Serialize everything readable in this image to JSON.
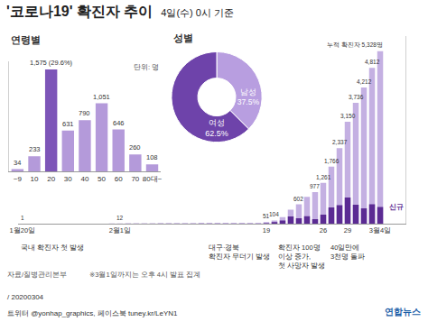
{
  "title": "'코로나19' 확진자 추이",
  "subtitle": "4일(수) 0시 기준",
  "source": "자료/질병관리본부",
  "note": "※3월1일까지는 오후 4시 발표 집계",
  "credits": [
    "/ 20200304",
    "트위터 @yonhap_graphics, 페이스북 tuney.kr/LeYN1",
    "연합뉴스"
  ],
  "chart_data": [
    {
      "type": "bar",
      "title": "연령별",
      "subtitle": "단위: 명",
      "categories": [
        "~9",
        "10",
        "20",
        "30",
        "40",
        "50",
        "60",
        "70",
        "80대~"
      ],
      "values": [
        34,
        233,
        1575,
        631,
        790,
        1051,
        646,
        260,
        108
      ],
      "value_labels": [
        "34",
        "233",
        "1,575 (29.6%)",
        "631",
        "790",
        "1,051",
        "646",
        "260",
        "108"
      ],
      "colors": [
        "#b49ada",
        "#b49ada",
        "#7d55b8",
        "#b49ada",
        "#b49ada",
        "#b49ada",
        "#b49ada",
        "#b49ada",
        "#b49ada"
      ],
      "ylim": [
        0,
        1700
      ],
      "tick_labels": "x",
      "grid": false,
      "data_labels": true
    },
    {
      "type": "pie",
      "title": "성별",
      "categories": [
        "남성",
        "여성"
      ],
      "values": [
        37.5,
        62.5
      ],
      "value_labels": [
        "37.5%",
        "62.5%"
      ],
      "colors": [
        "#b89ee0",
        "#6e43aa"
      ],
      "data_labels": true
    },
    {
      "type": "bar",
      "categories": [
        "1월20일",
        null,
        null,
        null,
        null,
        null,
        null,
        null,
        null,
        null,
        null,
        null,
        "2월1일",
        null,
        null,
        null,
        null,
        null,
        null,
        null,
        null,
        null,
        null,
        null,
        null,
        null,
        null,
        null,
        null,
        null,
        "19",
        null,
        null,
        null,
        null,
        null,
        null,
        "26",
        null,
        null,
        "29",
        null,
        null,
        null,
        "3월4일"
      ],
      "series": [
        {
          "name": "누적 확진자",
          "color": "#c4b0e2",
          "data_labels": true,
          "values": [
            1,
            1,
            1,
            1,
            2,
            2,
            3,
            4,
            4,
            4,
            6,
            11,
            12,
            15,
            15,
            16,
            18,
            23,
            24,
            24,
            25,
            27,
            28,
            28,
            28,
            28,
            28,
            29,
            30,
            31,
            51,
            104,
            204,
            433,
            602,
            833,
            977,
            1261,
            1766,
            2337,
            3150,
            3736,
            4212,
            4812,
            5328
          ],
          "value_labels": [
            "1",
            null,
            null,
            null,
            null,
            null,
            null,
            null,
            null,
            null,
            null,
            null,
            "12",
            null,
            null,
            null,
            null,
            null,
            null,
            null,
            null,
            null,
            null,
            null,
            null,
            null,
            null,
            null,
            null,
            null,
            "51",
            "104",
            null,
            null,
            "602",
            null,
            "977",
            "1,261",
            "1,766",
            "2,337",
            "3,150",
            "3,736",
            "4,212",
            "4,812",
            "누적 확진자 5,328명"
          ]
        },
        {
          "name": "신규",
          "color": "#5b2b93",
          "values": [
            1,
            0,
            0,
            0,
            1,
            0,
            1,
            1,
            0,
            0,
            2,
            5,
            1,
            3,
            0,
            1,
            2,
            5,
            1,
            0,
            1,
            2,
            1,
            0,
            0,
            0,
            0,
            1,
            1,
            1,
            20,
            53,
            100,
            229,
            169,
            231,
            144,
            284,
            505,
            571,
            813,
            586,
            476,
            600,
            516
          ]
        }
      ],
      "ylim": [
        0,
        5800
      ],
      "tick_labels": "x",
      "grid": false,
      "annotations": [
        {
          "x": 0,
          "text": [
            "국내 확진자 첫 발생"
          ]
        },
        {
          "x": 30,
          "text": [
            "대구·경북",
            "확진자 무더기 발생"
          ]
        },
        {
          "x": 31,
          "text": [
            "확진자 100명",
            "이상 증가,",
            "첫 사망자 발생"
          ]
        },
        {
          "x": 40,
          "text": [
            "40일만에",
            "3천명 돌파"
          ]
        }
      ]
    }
  ]
}
